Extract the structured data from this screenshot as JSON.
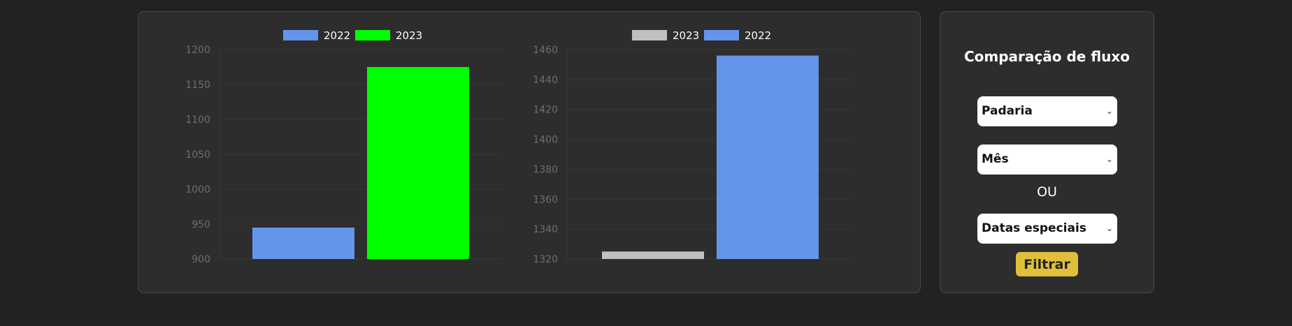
{
  "chart_data": [
    {
      "type": "bar",
      "series": [
        {
          "name": "2022",
          "values": [
            945
          ],
          "color": "#6495ED"
        },
        {
          "name": "2023",
          "values": [
            1175
          ],
          "color": "#00FF00"
        }
      ],
      "ylim": [
        900,
        1200
      ],
      "yticks": [
        900,
        950,
        1000,
        1050,
        1100,
        1150,
        1200
      ],
      "legend": "top-center",
      "grid": true
    },
    {
      "type": "bar",
      "series": [
        {
          "name": "2023",
          "values": [
            1325
          ],
          "color": "#C0C0C0"
        },
        {
          "name": "2022",
          "values": [
            1456
          ],
          "color": "#6495ED"
        }
      ],
      "ylim": [
        1320,
        1460
      ],
      "yticks": [
        1320,
        1340,
        1360,
        1380,
        1400,
        1420,
        1440,
        1460
      ],
      "legend": "top-center",
      "grid": true
    }
  ],
  "filter": {
    "title": "Comparação de fluxo",
    "store_select": "Padaria",
    "month_select": "Mês",
    "or_label": "OU",
    "special_dates_select": "Datas especiais",
    "filter_button": "Filtrar",
    "button_color": "#e0c03a"
  }
}
